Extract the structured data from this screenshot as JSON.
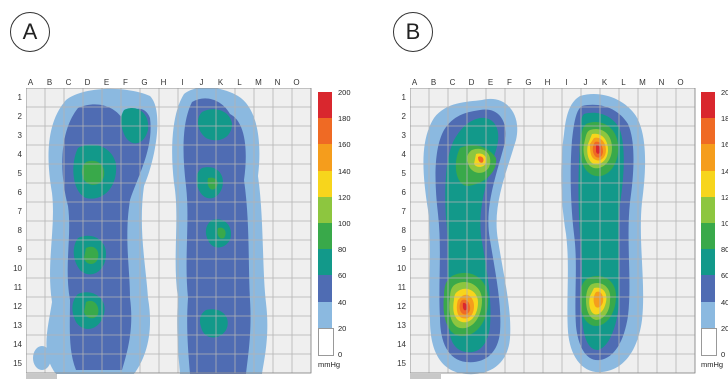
{
  "columns": [
    "A",
    "B",
    "C",
    "D",
    "E",
    "F",
    "G",
    "H",
    "I",
    "J",
    "K",
    "L",
    "M",
    "N",
    "O"
  ],
  "rows": [
    "1",
    "2",
    "3",
    "4",
    "5",
    "6",
    "7",
    "8",
    "9",
    "10",
    "11",
    "12",
    "13",
    "14",
    "15"
  ],
  "panels": [
    {
      "label": "A"
    },
    {
      "label": "B"
    }
  ],
  "scale": {
    "unit": "mmHg",
    "ticks": [
      "200",
      "180",
      "160",
      "140",
      "120",
      "100",
      "80",
      "60",
      "40",
      "20",
      "0"
    ],
    "colors": [
      "#d9272e",
      "#ef6a24",
      "#f59d1c",
      "#f7d51c",
      "#8dc63f",
      "#39a94a",
      "#12998a",
      "#4f6cb3",
      "#8bb9e0",
      "#ffffff"
    ]
  }
}
